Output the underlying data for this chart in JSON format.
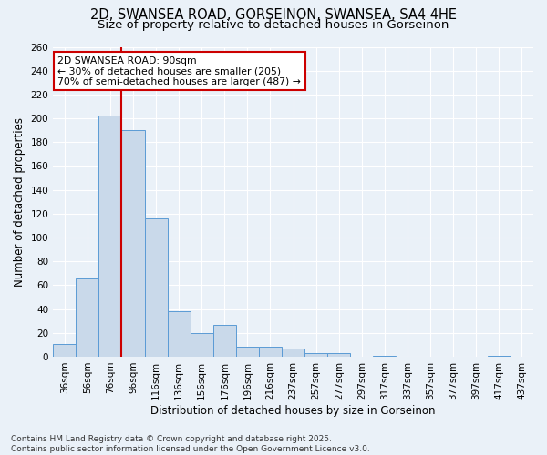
{
  "title_line1": "2D, SWANSEA ROAD, GORSEINON, SWANSEA, SA4 4HE",
  "title_line2": "Size of property relative to detached houses in Gorseinon",
  "xlabel": "Distribution of detached houses by size in Gorseinon",
  "ylabel": "Number of detached properties",
  "bar_values": [
    11,
    66,
    202,
    190,
    116,
    38,
    20,
    27,
    8,
    8,
    7,
    3,
    3,
    0,
    1,
    0,
    0,
    0,
    0,
    1,
    0
  ],
  "categories": [
    "36sqm",
    "56sqm",
    "76sqm",
    "96sqm",
    "116sqm",
    "136sqm",
    "156sqm",
    "176sqm",
    "196sqm",
    "216sqm",
    "237sqm",
    "257sqm",
    "277sqm",
    "297sqm",
    "317sqm",
    "337sqm",
    "357sqm",
    "377sqm",
    "397sqm",
    "417sqm",
    "437sqm"
  ],
  "bar_color": "#c9d9ea",
  "bar_edge_color": "#5b9bd5",
  "vline_x": 2.5,
  "vline_color": "#cc0000",
  "annotation_text": "2D SWANSEA ROAD: 90sqm\n← 30% of detached houses are smaller (205)\n70% of semi-detached houses are larger (487) →",
  "annotation_box_color": "#ffffff",
  "annotation_box_edge": "#cc0000",
  "ylim_max": 260,
  "yticks": [
    0,
    20,
    40,
    60,
    80,
    100,
    120,
    140,
    160,
    180,
    200,
    220,
    240,
    260
  ],
  "background_color": "#eaf1f8",
  "grid_color": "#ffffff",
  "footnote": "Contains HM Land Registry data © Crown copyright and database right 2025.\nContains public sector information licensed under the Open Government Licence v3.0.",
  "title_fontsize": 10.5,
  "subtitle_fontsize": 9.5,
  "axis_label_fontsize": 8.5,
  "tick_fontsize": 7.5,
  "annotation_fontsize": 7.8,
  "footnote_fontsize": 6.5
}
